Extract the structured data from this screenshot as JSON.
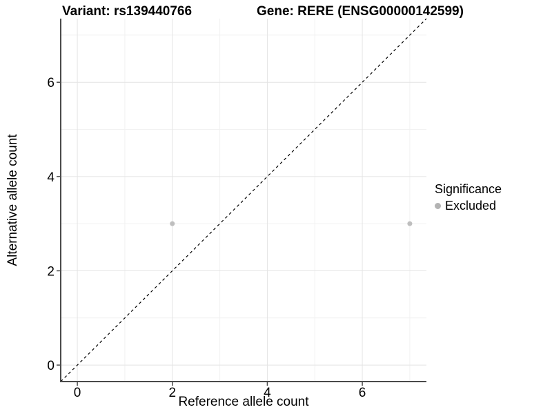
{
  "header": {
    "variant_title": "Variant: rs139440766",
    "gene_title": "Gene: RERE (ENSG00000142599)"
  },
  "colors": {
    "point": "#bebebe",
    "legend_key": "#b3b3b3",
    "axis_line": "#4a4a4a",
    "grid_major": "#e4e4e4",
    "grid_minor": "#f1f1f1",
    "identity_line": "#000000",
    "text": "#000000",
    "background": "#ffffff"
  },
  "chart_data": {
    "type": "scatter",
    "title": "Variant: rs139440766    Gene: RERE (ENSG00000142599)",
    "xlabel": "Reference allele count",
    "ylabel": "Alternative allele count",
    "xlim": [
      -0.35,
      7.35
    ],
    "ylim": [
      -0.35,
      7.35
    ],
    "x_ticks": [
      0,
      2,
      4,
      6
    ],
    "y_ticks": [
      0,
      2,
      4,
      6
    ],
    "x_minor_ticks": [
      1,
      3,
      5,
      7
    ],
    "y_minor_ticks": [
      1,
      3,
      5,
      7
    ],
    "grid": true,
    "reference_line": {
      "kind": "identity",
      "style": "dashed",
      "from": [
        -0.35,
        -0.35
      ],
      "to": [
        7.35,
        7.35
      ]
    },
    "series": [
      {
        "name": "Excluded",
        "color": "#bebebe",
        "points": [
          {
            "x": 2,
            "y": 3
          },
          {
            "x": 7,
            "y": 3
          }
        ]
      }
    ],
    "legend": {
      "title": "Significance",
      "position": "right",
      "items": [
        {
          "label": "Excluded",
          "color": "#bebebe"
        }
      ]
    }
  }
}
